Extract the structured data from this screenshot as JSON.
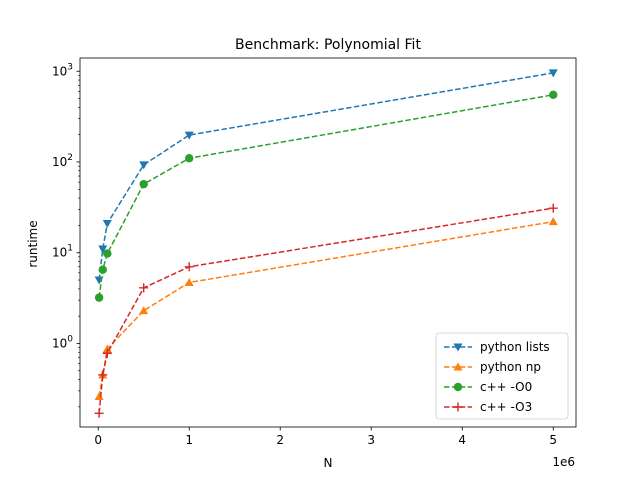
{
  "chart_data": {
    "type": "line",
    "title": "Benchmark: Polynomial Fit",
    "xlabel": "N",
    "ylabel": "runtime",
    "x_offset_label": "1e6",
    "xlim": [
      -200000,
      5250000
    ],
    "ylim": [
      0.12,
      1400
    ],
    "yscale": "log",
    "x_ticks": [
      0,
      1000000,
      2000000,
      3000000,
      4000000,
      5000000
    ],
    "x_tick_labels": [
      "0",
      "1",
      "2",
      "3",
      "4",
      "5"
    ],
    "y_ticks": [
      1,
      10,
      100,
      1000
    ],
    "y_tick_labels": [
      "10^0",
      "10^1",
      "10^2",
      "10^3"
    ],
    "legend_position": "lower-right",
    "series": [
      {
        "name": "python lists",
        "color": "#1f77b4",
        "marker": "triangle-down",
        "x": [
          10000,
          50000,
          100000,
          500000,
          1000000,
          5000000
        ],
        "y": [
          5.0,
          11.0,
          21.0,
          93.0,
          198.0,
          960.0
        ]
      },
      {
        "name": "python np",
        "color": "#ff7f0e",
        "marker": "triangle-up",
        "x": [
          10000,
          50000,
          100000,
          500000,
          1000000,
          5000000
        ],
        "y": [
          0.26,
          0.45,
          0.87,
          2.3,
          4.7,
          22.0
        ]
      },
      {
        "name": "c++ -O0",
        "color": "#2ca02c",
        "marker": "circle",
        "x": [
          10000,
          50000,
          100000,
          500000,
          1000000,
          5000000
        ],
        "y": [
          3.2,
          6.5,
          9.8,
          57.0,
          110.0,
          550.0
        ]
      },
      {
        "name": "c++ -O3",
        "color": "#d62728",
        "marker": "plus",
        "x": [
          10000,
          50000,
          100000,
          500000,
          1000000,
          5000000
        ],
        "y": [
          0.17,
          0.45,
          0.78,
          4.1,
          7.0,
          31.0
        ]
      }
    ]
  }
}
